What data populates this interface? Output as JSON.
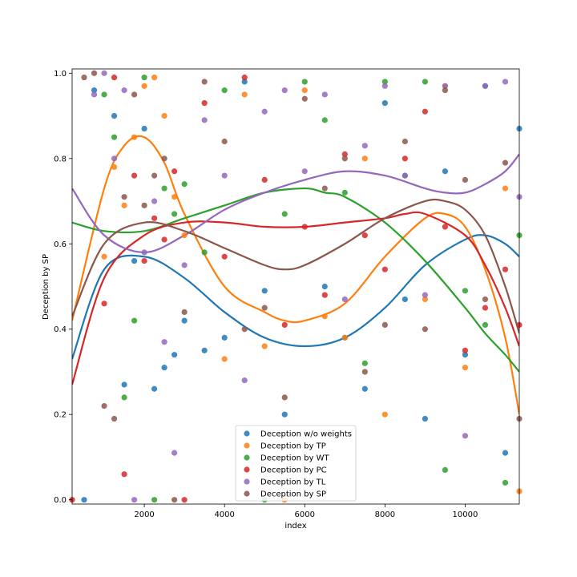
{
  "chart_data": {
    "type": "scatter",
    "title": "",
    "xlabel": "index",
    "ylabel": "Deception by SP",
    "xlim": [
      200,
      11350
    ],
    "ylim": [
      -0.01,
      1.01
    ],
    "x_ticks": [
      2000,
      4000,
      6000,
      8000,
      10000
    ],
    "x_tick_labels": [
      "2000",
      "4000",
      "6000",
      "8000",
      "10000"
    ],
    "y_ticks": [
      0.0,
      0.2,
      0.4,
      0.6,
      0.8,
      1.0
    ],
    "y_tick_labels": [
      "0.0",
      "0.2",
      "0.4",
      "0.6",
      "0.8",
      "1.0"
    ],
    "grid": false,
    "legend_position": "lower-center",
    "series": [
      {
        "name": "Deception w/o weights",
        "color": "#1f77b4",
        "x": [
          500,
          750,
          1250,
          1500,
          1750,
          2000,
          2250,
          2500,
          2750,
          3000,
          3500,
          4000,
          4500,
          5000,
          5500,
          6500,
          7000,
          7500,
          8000,
          8500,
          9000,
          9500,
          10000,
          10500,
          11000,
          11350
        ],
        "y": [
          0.0,
          0.96,
          0.9,
          0.27,
          0.56,
          0.87,
          0.26,
          0.31,
          0.34,
          0.42,
          0.35,
          0.38,
          0.98,
          0.49,
          0.2,
          0.5,
          0.38,
          0.26,
          0.93,
          0.47,
          0.19,
          0.77,
          0.34,
          0.97,
          0.11,
          0.87
        ],
        "trend_x": [
          200,
          1000,
          2000,
          3000,
          4000,
          5000,
          6000,
          7000,
          8000,
          9000,
          10000,
          10500,
          11000,
          11350
        ],
        "trend_y": [
          0.33,
          0.54,
          0.57,
          0.52,
          0.44,
          0.38,
          0.36,
          0.38,
          0.45,
          0.55,
          0.61,
          0.62,
          0.6,
          0.57
        ]
      },
      {
        "name": "Deception by TP",
        "color": "#ff7f0e",
        "x": [
          1000,
          1250,
          1500,
          1750,
          2000,
          2250,
          2500,
          2750,
          3000,
          4000,
          4500,
          5000,
          5500,
          6000,
          6500,
          7000,
          7500,
          8000,
          9000,
          9500,
          10000,
          11000,
          11350
        ],
        "y": [
          0.57,
          0.78,
          0.69,
          0.85,
          0.97,
          0.99,
          0.9,
          0.71,
          0.62,
          0.33,
          0.95,
          0.36,
          0.0,
          0.96,
          0.43,
          0.38,
          0.8,
          0.2,
          0.47,
          0.97,
          0.31,
          0.73,
          0.02
        ],
        "trend_x": [
          200,
          1000,
          1500,
          2000,
          2500,
          3000,
          4000,
          5000,
          5500,
          6000,
          7000,
          8000,
          9000,
          9500,
          10000,
          10500,
          11000,
          11350
        ],
        "trend_y": [
          0.42,
          0.73,
          0.83,
          0.85,
          0.79,
          0.67,
          0.5,
          0.44,
          0.42,
          0.42,
          0.46,
          0.57,
          0.66,
          0.67,
          0.64,
          0.54,
          0.38,
          0.2
        ]
      },
      {
        "name": "Deception by WT",
        "color": "#2ca02c",
        "x": [
          1000,
          1250,
          1500,
          1750,
          2000,
          2250,
          2500,
          2750,
          3000,
          3500,
          4000,
          5000,
          5500,
          6000,
          6500,
          7000,
          7500,
          8000,
          8500,
          9000,
          9500,
          10000,
          10500,
          11000,
          11350
        ],
        "y": [
          0.95,
          0.85,
          0.24,
          0.42,
          0.99,
          0.0,
          0.73,
          0.67,
          0.74,
          0.58,
          0.96,
          0.0,
          0.67,
          0.98,
          0.89,
          0.72,
          0.32,
          0.98,
          0.76,
          0.98,
          0.07,
          0.49,
          0.41,
          0.04,
          0.62
        ],
        "trend_x": [
          200,
          1000,
          2000,
          3000,
          4000,
          5000,
          6000,
          6500,
          7000,
          8000,
          9000,
          10000,
          10500,
          11000,
          11350
        ],
        "trend_y": [
          0.65,
          0.63,
          0.63,
          0.66,
          0.69,
          0.72,
          0.73,
          0.72,
          0.71,
          0.65,
          0.56,
          0.45,
          0.39,
          0.34,
          0.3
        ]
      },
      {
        "name": "Deception by PC",
        "color": "#d62728",
        "x": [
          200,
          1000,
          1250,
          1500,
          1750,
          2000,
          2250,
          2500,
          2750,
          3000,
          3500,
          4000,
          4500,
          5000,
          5500,
          6000,
          6500,
          7000,
          7500,
          8000,
          8500,
          9000,
          9500,
          10000,
          10500,
          11000,
          11350
        ],
        "y": [
          0.0,
          0.46,
          0.99,
          0.06,
          0.76,
          0.56,
          0.66,
          0.61,
          0.77,
          0.0,
          0.93,
          0.57,
          0.99,
          0.75,
          0.41,
          0.64,
          0.48,
          0.81,
          0.62,
          0.54,
          0.8,
          0.91,
          0.64,
          0.35,
          0.45,
          0.54,
          0.41
        ],
        "trend_x": [
          200,
          1000,
          2000,
          3000,
          4000,
          5000,
          6000,
          7000,
          8000,
          8500,
          9000,
          10000,
          10500,
          11000,
          11350
        ],
        "trend_y": [
          0.27,
          0.52,
          0.62,
          0.65,
          0.65,
          0.64,
          0.64,
          0.65,
          0.66,
          0.67,
          0.67,
          0.62,
          0.55,
          0.45,
          0.36
        ]
      },
      {
        "name": "Deception by TL",
        "color": "#9467bd",
        "x": [
          750,
          1000,
          1250,
          1500,
          1750,
          2000,
          2250,
          2500,
          2750,
          3000,
          3500,
          4000,
          4500,
          5000,
          5500,
          6000,
          6500,
          7000,
          7500,
          8000,
          8500,
          9000,
          9500,
          10000,
          10500,
          11000,
          11350
        ],
        "y": [
          0.95,
          1.0,
          0.8,
          0.96,
          0.0,
          0.58,
          0.7,
          0.37,
          0.11,
          0.55,
          0.89,
          0.76,
          0.28,
          0.91,
          0.96,
          0.77,
          0.95,
          0.47,
          0.83,
          0.97,
          0.76,
          0.48,
          0.97,
          0.15,
          0.97,
          0.98,
          0.71
        ],
        "trend_x": [
          200,
          1000,
          2000,
          3000,
          4000,
          5000,
          6000,
          7000,
          8000,
          9000,
          9500,
          10000,
          10500,
          11000,
          11350
        ],
        "trend_y": [
          0.73,
          0.62,
          0.58,
          0.62,
          0.68,
          0.72,
          0.75,
          0.77,
          0.76,
          0.73,
          0.72,
          0.72,
          0.74,
          0.77,
          0.81
        ]
      },
      {
        "name": "Deception by SP",
        "color": "#8c564b",
        "x": [
          500,
          750,
          1000,
          1250,
          1500,
          1750,
          2000,
          2250,
          2500,
          2750,
          3000,
          3500,
          4000,
          4500,
          5000,
          5500,
          6000,
          6500,
          7000,
          7500,
          8000,
          8500,
          9000,
          9500,
          10000,
          10500,
          11000,
          11350
        ],
        "y": [
          0.99,
          1.0,
          0.22,
          0.19,
          0.71,
          0.95,
          0.69,
          0.76,
          0.8,
          0.0,
          0.44,
          0.98,
          0.84,
          0.4,
          0.45,
          0.24,
          0.94,
          0.73,
          0.8,
          0.3,
          0.41,
          0.84,
          0.4,
          0.96,
          0.75,
          0.47,
          0.79,
          0.19
        ],
        "trend_x": [
          200,
          1000,
          2000,
          3000,
          4000,
          5000,
          5500,
          6000,
          7000,
          8000,
          9000,
          9500,
          10000,
          10500,
          11000,
          11350
        ],
        "trend_y": [
          0.43,
          0.6,
          0.65,
          0.63,
          0.59,
          0.55,
          0.54,
          0.55,
          0.6,
          0.66,
          0.7,
          0.7,
          0.68,
          0.62,
          0.5,
          0.39
        ]
      }
    ]
  }
}
